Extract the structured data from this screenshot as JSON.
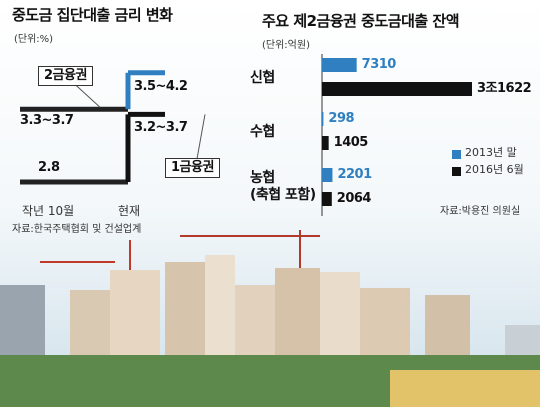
{
  "chart_data": [
    {
      "type": "step",
      "title": "중도금 집단대출 금리 변화",
      "subtitle": "(단위:%)",
      "categories": [
        "작년 10월",
        "현재"
      ],
      "series": [
        {
          "name": "2금융권",
          "color": "#2f7fc1",
          "low": [
            3.3,
            3.5
          ],
          "high": [
            3.7,
            4.2
          ],
          "value_labels": [
            "3.3~3.7",
            "3.5~4.2"
          ]
        },
        {
          "name": "1금융권",
          "color": "#111111",
          "low": [
            2.8,
            3.2
          ],
          "high": [
            2.8,
            3.7
          ],
          "value_labels": [
            "2.8",
            "3.2~3.7"
          ]
        }
      ],
      "source": "자료:한국주택협회 및 건설업계"
    },
    {
      "type": "hbar",
      "title": "주요 제2금융권 중도금대출 잔액",
      "subtitle": "(단위:억원)",
      "categories": [
        "신협",
        "수협",
        "농협\n(축협 포함)"
      ],
      "series": [
        {
          "name": "2013년 말",
          "color": "#2f7fc1",
          "values": [
            7310,
            298,
            2201
          ]
        },
        {
          "name": "2016년 6월",
          "color": "#111111",
          "values": [
            31622,
            1405,
            2064
          ],
          "value_labels": [
            "3조1622",
            "1405",
            "2064"
          ]
        }
      ],
      "legend": "right",
      "source": "자료:박용진 의원실"
    }
  ]
}
